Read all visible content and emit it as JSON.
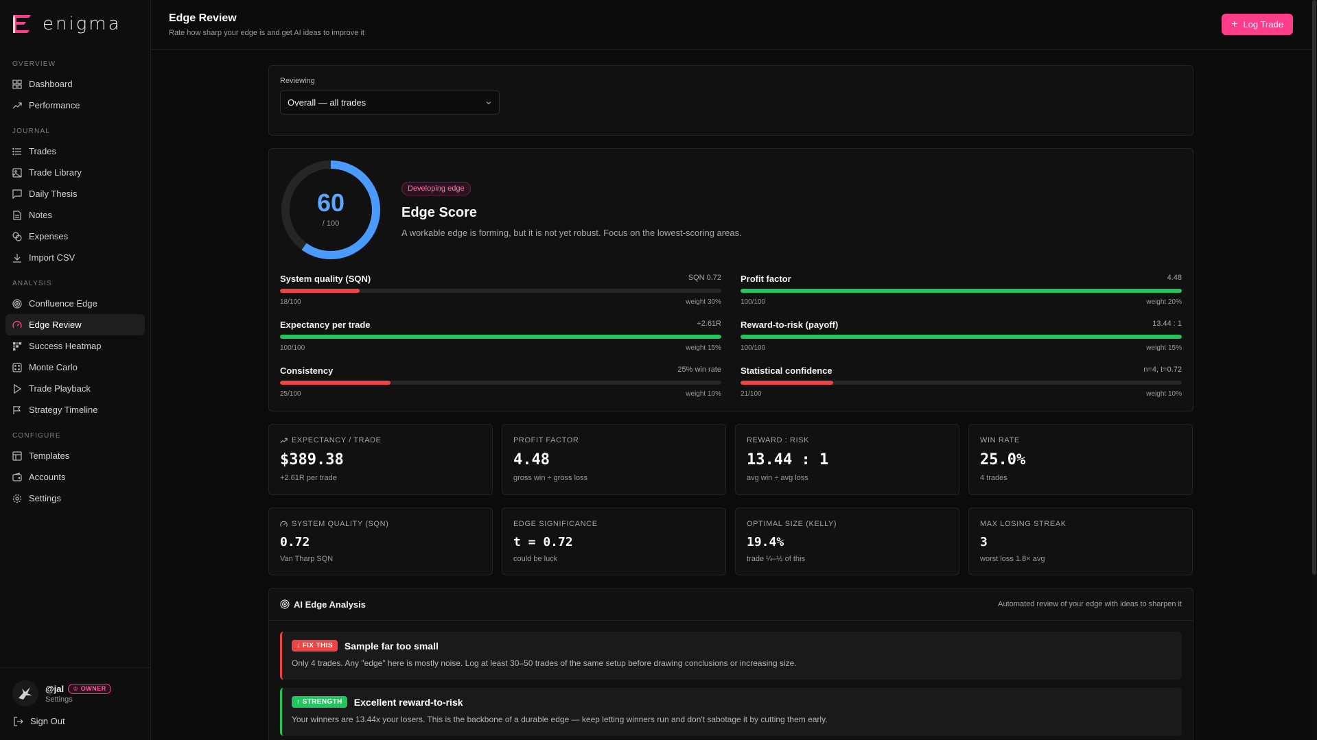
{
  "brand": {
    "name": "enigma",
    "accent": "#ff3d8b"
  },
  "sidebar": {
    "sections": [
      {
        "title": "OVERVIEW",
        "items": [
          {
            "label": "Dashboard",
            "icon": "grid-icon"
          },
          {
            "label": "Performance",
            "icon": "trend-up-icon"
          }
        ]
      },
      {
        "title": "JOURNAL",
        "items": [
          {
            "label": "Trades",
            "icon": "list-icon"
          },
          {
            "label": "Trade Library",
            "icon": "image-icon"
          },
          {
            "label": "Daily Thesis",
            "icon": "message-square-icon"
          },
          {
            "label": "Notes",
            "icon": "file-text-icon"
          },
          {
            "label": "Expenses",
            "icon": "coins-icon"
          },
          {
            "label": "Import CSV",
            "icon": "download-icon"
          }
        ]
      },
      {
        "title": "ANALYSIS",
        "items": [
          {
            "label": "Confluence Edge",
            "icon": "target-icon"
          },
          {
            "label": "Edge Review",
            "icon": "gauge-icon",
            "active": true
          },
          {
            "label": "Success Heatmap",
            "icon": "heatmap-icon"
          },
          {
            "label": "Monte Carlo",
            "icon": "dice-icon"
          },
          {
            "label": "Trade Playback",
            "icon": "play-icon"
          },
          {
            "label": "Strategy Timeline",
            "icon": "flag-icon"
          }
        ]
      },
      {
        "title": "CONFIGURE",
        "items": [
          {
            "label": "Templates",
            "icon": "layout-icon"
          },
          {
            "label": "Accounts",
            "icon": "wallet-icon"
          },
          {
            "label": "Settings",
            "icon": "gear-icon"
          }
        ]
      }
    ],
    "user": {
      "handle": "@jal",
      "badge": "OWNER",
      "sub": "Settings"
    },
    "signout": "Sign Out"
  },
  "header": {
    "title": "Edge Review",
    "subtitle": "Rate how sharp your edge is and get AI ideas to improve it",
    "log_button": "Log Trade"
  },
  "review": {
    "label": "Reviewing",
    "selected": "Overall — all trades"
  },
  "score": {
    "value": "60",
    "denominator": "/ 100",
    "fraction": 0.6,
    "badge": "Developing edge",
    "title": "Edge Score",
    "description": "A workable edge is forming, but it is not yet robust. Focus on the lowest-scoring areas.",
    "metrics": [
      {
        "name": "System quality (SQN)",
        "value": "SQN 0.72",
        "score": "18/100",
        "pct": 18,
        "weight": "weight 30%",
        "color": "#ef4444"
      },
      {
        "name": "Profit factor",
        "value": "4.48",
        "score": "100/100",
        "pct": 100,
        "weight": "weight 20%",
        "color": "#22c55e"
      },
      {
        "name": "Expectancy per trade",
        "value": "+2.61R",
        "score": "100/100",
        "pct": 100,
        "weight": "weight 15%",
        "color": "#22c55e"
      },
      {
        "name": "Reward-to-risk (payoff)",
        "value": "13.44 : 1",
        "score": "100/100",
        "pct": 100,
        "weight": "weight 15%",
        "color": "#22c55e"
      },
      {
        "name": "Consistency",
        "value": "25% win rate",
        "score": "25/100",
        "pct": 25,
        "weight": "weight 10%",
        "color": "#ef4444"
      },
      {
        "name": "Statistical confidence",
        "value": "n=4, t=0.72",
        "score": "21/100",
        "pct": 21,
        "weight": "weight 10%",
        "color": "#ef4444"
      }
    ]
  },
  "stats": [
    {
      "label": "EXPECTANCY / TRADE",
      "icon": "trend-up-icon",
      "value": "$389.38",
      "sub": "+2.61R per trade"
    },
    {
      "label": "PROFIT FACTOR",
      "value": "4.48",
      "sub": "gross win ÷ gross loss"
    },
    {
      "label": "REWARD : RISK",
      "value": "13.44 : 1",
      "sub": "avg win ÷ avg loss"
    },
    {
      "label": "WIN RATE",
      "value": "25.0%",
      "sub": "4 trades"
    },
    {
      "label": "SYSTEM QUALITY (SQN)",
      "icon": "gauge-icon",
      "value": "0.72",
      "sub": "Van Tharp SQN"
    },
    {
      "label": "EDGE SIGNIFICANCE",
      "value": "t = 0.72",
      "sub": "could be luck"
    },
    {
      "label": "OPTIMAL SIZE (KELLY)",
      "value": "19.4%",
      "sub": "trade ¼–½ of this"
    },
    {
      "label": "MAX LOSING STREAK",
      "value": "3",
      "sub": "worst loss 1.8× avg"
    }
  ],
  "ai": {
    "title": "AI Edge Analysis",
    "note": "Automated review of your edge with ideas to sharpen it",
    "insights": [
      {
        "tag": "FIX THIS",
        "tag_icon": "arrow-down-icon",
        "color": "#ef4444",
        "title": "Sample far too small",
        "text": "Only 4 trades. Any \"edge\" here is mostly noise. Log at least 30–50 trades of the same setup before drawing conclusions or increasing size."
      },
      {
        "tag": "STRENGTH",
        "tag_icon": "arrow-up-icon",
        "color": "#22c55e",
        "title": "Excellent reward-to-risk",
        "text": "Your winners are 13.44x your losers. This is the backbone of a durable edge — keep letting winners run and don't sabotage it by cutting them early."
      }
    ]
  }
}
